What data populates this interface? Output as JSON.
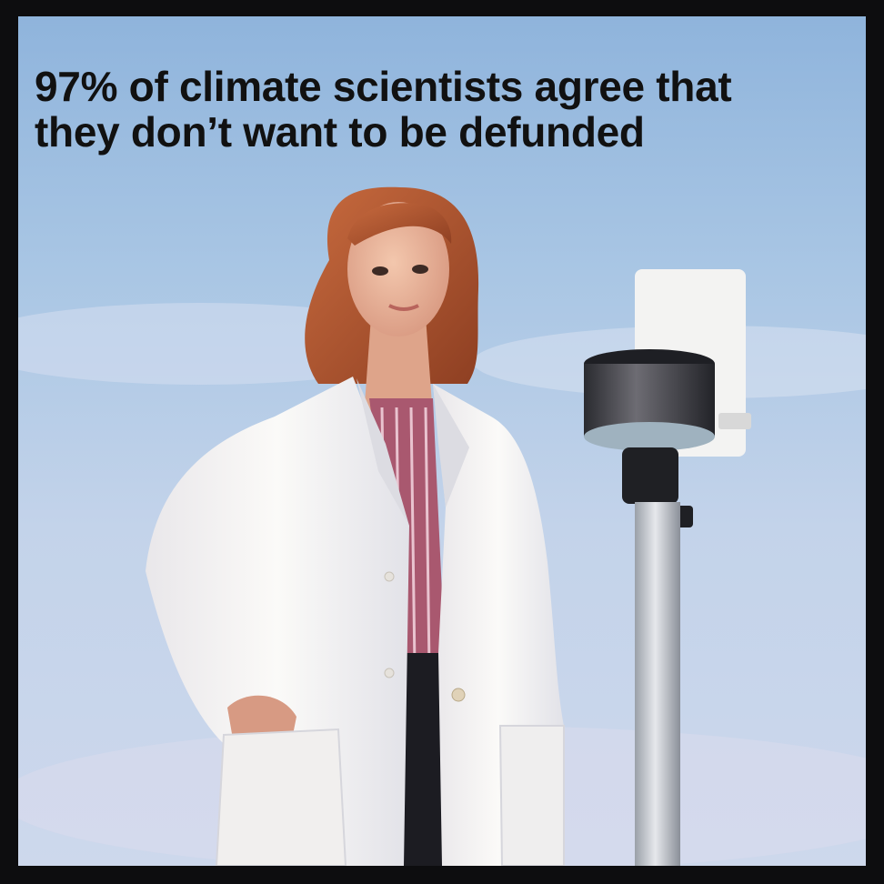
{
  "meme": {
    "caption_line1": "97% of climate scientists agree that",
    "caption_line2": "they don’t want to be defunded"
  },
  "colors": {
    "border": "#0d0d0f",
    "sky": "#a9c6e4",
    "lab_coat": "#f4f1ee",
    "hair": "#b4552f",
    "text": "#111111"
  }
}
